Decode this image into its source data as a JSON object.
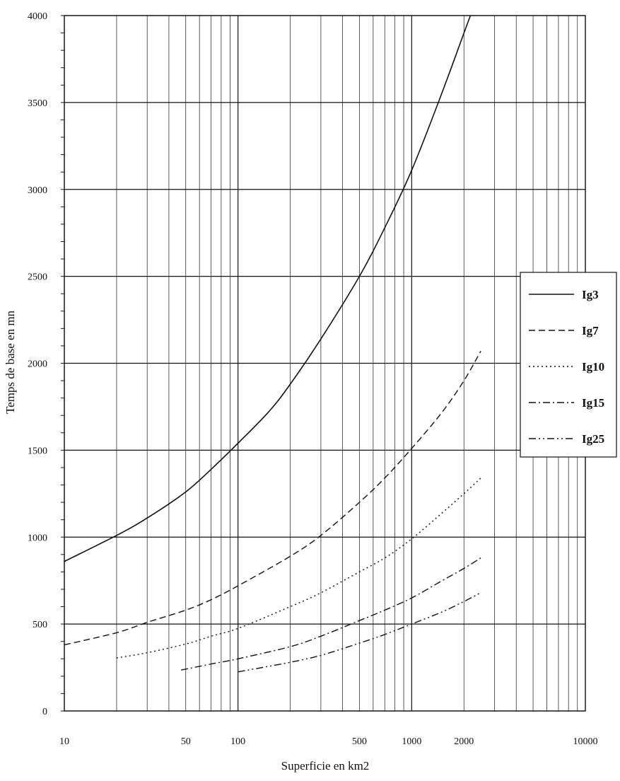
{
  "chart_data": {
    "type": "line",
    "title": "",
    "xlabel": "Superficie en km2",
    "ylabel": "Temps de base en mn",
    "x_scale": "log",
    "xlim": [
      10,
      10000
    ],
    "ylim": [
      0,
      4000
    ],
    "grid": true,
    "legend_position": "right",
    "y_ticks": [
      "0",
      "500",
      "1000",
      "1500",
      "2000",
      "2500",
      "3000",
      "3500",
      "4000"
    ],
    "x_tick_labels": [
      "10",
      "50",
      "100",
      "500",
      "1000",
      "2000",
      "10000"
    ],
    "series": [
      {
        "name": "Ig3",
        "style": "solid",
        "color": "#111111",
        "x": [
          10,
          20,
          30,
          50,
          70,
          100,
          150,
          200,
          300,
          500,
          700,
          1000,
          1500,
          2000,
          2180
        ],
        "y": [
          860,
          1010,
          1110,
          1260,
          1390,
          1540,
          1720,
          1880,
          2140,
          2500,
          2780,
          3110,
          3560,
          3900,
          4000
        ]
      },
      {
        "name": "Ig7",
        "style": "dashed",
        "color": "#111111",
        "x": [
          10,
          20,
          30,
          50,
          70,
          100,
          200,
          300,
          500,
          700,
          1000,
          1500,
          2000,
          2500
        ],
        "y": [
          380,
          450,
          510,
          580,
          640,
          720,
          890,
          1010,
          1200,
          1340,
          1510,
          1720,
          1900,
          2070
        ]
      },
      {
        "name": "Ig10",
        "style": "dotted",
        "color": "#111111",
        "x": [
          20,
          30,
          50,
          70,
          100,
          200,
          300,
          500,
          700,
          1000,
          1500,
          2000,
          2500
        ],
        "y": [
          305,
          335,
          385,
          430,
          475,
          600,
          680,
          800,
          880,
          990,
          1140,
          1250,
          1340
        ]
      },
      {
        "name": "Ig15",
        "style": "dashdot",
        "color": "#111111",
        "x": [
          47,
          70,
          100,
          200,
          300,
          500,
          700,
          1000,
          1500,
          2000,
          2500
        ],
        "y": [
          235,
          270,
          300,
          370,
          430,
          520,
          580,
          650,
          750,
          820,
          880
        ]
      },
      {
        "name": "Ig25",
        "style": "dashdotdot",
        "color": "#111111",
        "x": [
          100,
          200,
          300,
          500,
          700,
          1000,
          1500,
          2000,
          2500
        ],
        "y": [
          225,
          280,
          320,
          390,
          440,
          500,
          570,
          630,
          680
        ]
      }
    ]
  }
}
